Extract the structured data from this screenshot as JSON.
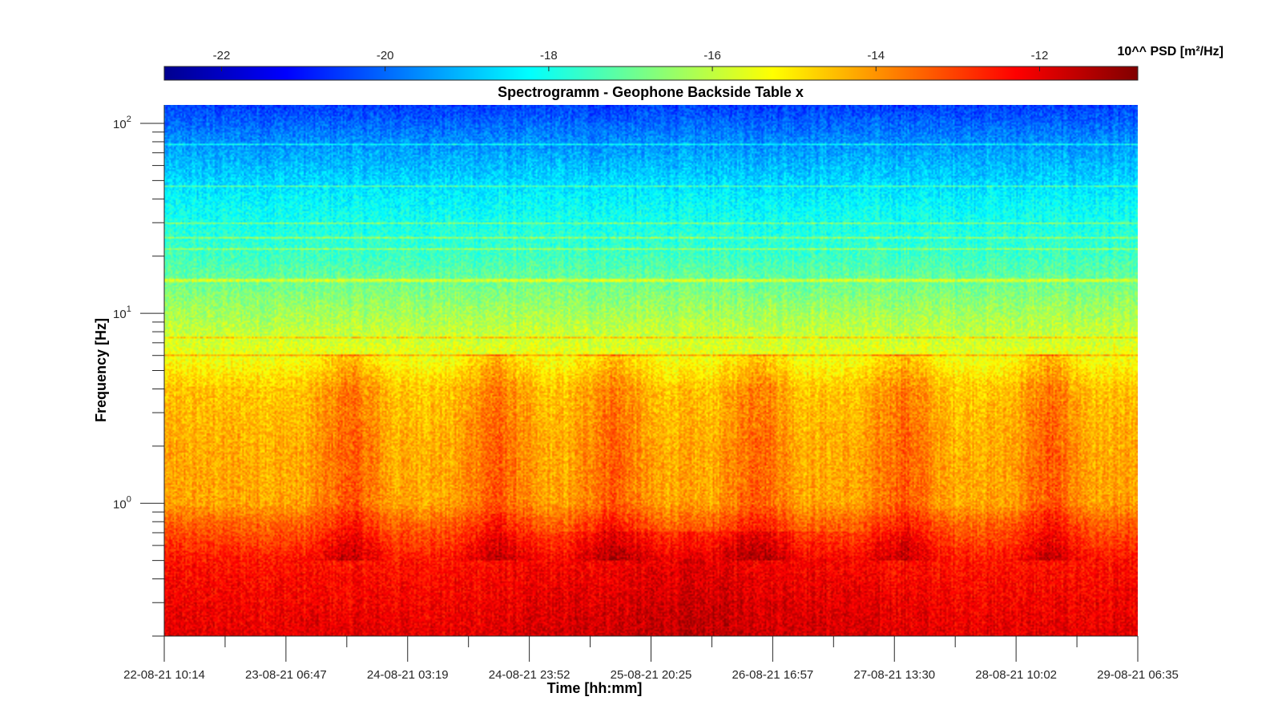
{
  "chart_data": {
    "type": "heatmap",
    "title": "Spectrogramm - Geophone Backside Table x",
    "xlabel": "Time [hh:mm]",
    "ylabel": "Frequency [Hz]",
    "y_scale": "log",
    "ylim": [
      0.2,
      125
    ],
    "y_ticks": [
      {
        "value": 1,
        "label": "10",
        "exp": "0"
      },
      {
        "value": 10,
        "label": "10",
        "exp": "1"
      },
      {
        "value": 100,
        "label": "10",
        "exp": "2"
      }
    ],
    "x_ticks": [
      "22-08-21 10:14",
      "23-08-21 06:47",
      "24-08-21 03:19",
      "24-08-21 23:52",
      "25-08-21 20:25",
      "26-08-21 16:57",
      "27-08-21 13:30",
      "28-08-21 10:02",
      "29-08-21 06:35"
    ],
    "colorbar": {
      "label": "10^^ PSD [m²/Hz]",
      "ticks": [
        "-22",
        "-20",
        "-18",
        "-16",
        "-14",
        "-12"
      ],
      "tick_values": [
        -22,
        -20,
        -18,
        -16,
        -14,
        -12
      ],
      "range": [
        -22.7,
        -10.8
      ],
      "colormap": "jet"
    },
    "description_levels": {
      "frequency_hz": [
        0.2,
        0.3,
        0.5,
        0.8,
        1,
        2,
        4,
        6,
        10,
        20,
        40,
        80,
        125
      ],
      "log10_psd": [
        -12,
        -12.2,
        -12.5,
        -13.5,
        -14.2,
        -14.3,
        -14.6,
        -15.5,
        -16.3,
        -17.5,
        -18.3,
        -19.5,
        -20.5
      ]
    },
    "daily_activity_centers_fraction": [
      0.19,
      0.34,
      0.46,
      0.61,
      0.76,
      0.91
    ]
  }
}
